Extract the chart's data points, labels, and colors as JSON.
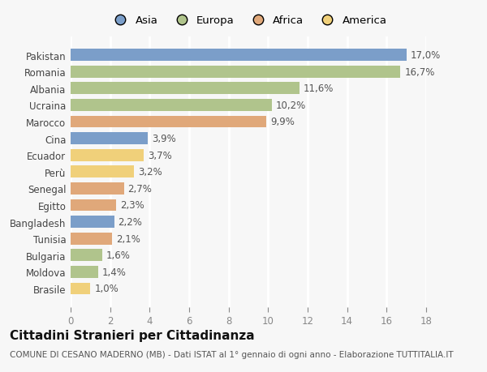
{
  "countries": [
    "Pakistan",
    "Romania",
    "Albania",
    "Ucraina",
    "Marocco",
    "Cina",
    "Ecuador",
    "Perù",
    "Senegal",
    "Egitto",
    "Bangladesh",
    "Tunisia",
    "Bulgaria",
    "Moldova",
    "Brasile"
  ],
  "values": [
    17.0,
    16.7,
    11.6,
    10.2,
    9.9,
    3.9,
    3.7,
    3.2,
    2.7,
    2.3,
    2.2,
    2.1,
    1.6,
    1.4,
    1.0
  ],
  "labels": [
    "17,0%",
    "16,7%",
    "11,6%",
    "10,2%",
    "9,9%",
    "3,9%",
    "3,7%",
    "3,2%",
    "2,7%",
    "2,3%",
    "2,2%",
    "2,1%",
    "1,6%",
    "1,4%",
    "1,0%"
  ],
  "colors": [
    "#7b9ec9",
    "#b0c48c",
    "#b0c48c",
    "#b0c48c",
    "#e0a87a",
    "#7b9ec9",
    "#f0d07a",
    "#f0d07a",
    "#e0a87a",
    "#e0a87a",
    "#7b9ec9",
    "#e0a87a",
    "#b0c48c",
    "#b0c48c",
    "#f0d07a"
  ],
  "legend_labels": [
    "Asia",
    "Europa",
    "Africa",
    "America"
  ],
  "legend_colors": [
    "#7b9ec9",
    "#b0c48c",
    "#e0a87a",
    "#f0d07a"
  ],
  "xlim": [
    0,
    18
  ],
  "xticks": [
    0,
    2,
    4,
    6,
    8,
    10,
    12,
    14,
    16,
    18
  ],
  "title": "Cittadini Stranieri per Cittadinanza",
  "subtitle": "COMUNE DI CESANO MADERNO (MB) - Dati ISTAT al 1° gennaio di ogni anno - Elaborazione TUTTITALIA.IT",
  "background_color": "#f7f7f7",
  "bar_height": 0.72,
  "value_fontsize": 8.5,
  "label_fontsize": 8.5,
  "title_fontsize": 11,
  "subtitle_fontsize": 7.5,
  "grid_color": "#ffffff",
  "grid_lw": 2.0
}
